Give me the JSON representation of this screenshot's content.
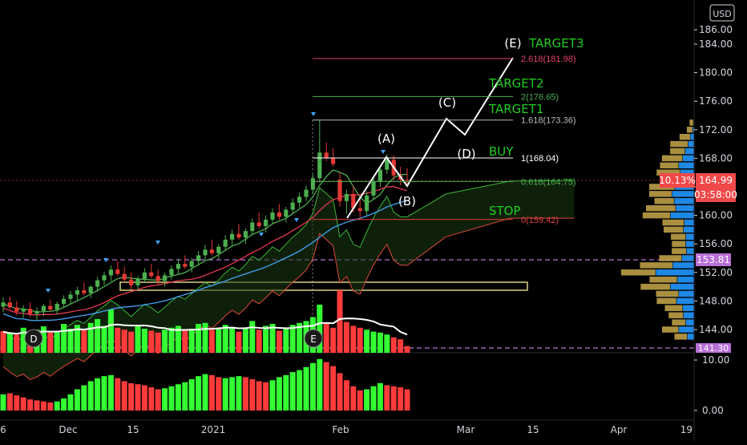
{
  "chart_data": {
    "type": "candlestick",
    "currency": "USD",
    "price_axis": {
      "range": [
        141.3,
        186.5
      ],
      "ticks": [
        "186.00",
        "184.00",
        "180.00",
        "176.00",
        "172.00",
        "168.00",
        "164.00",
        "160.00",
        "156.00",
        "152.00",
        "148.00",
        "144.00"
      ],
      "tick_values": [
        186,
        184,
        180,
        176,
        172,
        168,
        164,
        160,
        156,
        152,
        148,
        144
      ]
    },
    "oscillator_axis": {
      "ticks": [
        "10.00",
        "0.00"
      ],
      "tick_values": [
        10,
        0
      ]
    },
    "time_axis": {
      "ticks": [
        "6",
        "Dec",
        "15",
        "2021",
        "Feb",
        "Mar",
        "15",
        "Apr",
        "19"
      ]
    },
    "price_badges": {
      "change_pct": "10.13%",
      "last_price": "164.99",
      "countdown": "03:58:00",
      "purple_level_1": "153.81",
      "purple_level_2": "141.30"
    },
    "fib_levels": [
      {
        "label": "2.618(181.98)",
        "value": 181.98,
        "color": "#e0406a"
      },
      {
        "label": "2(176.65)",
        "value": 176.65,
        "color": "#4caf50"
      },
      {
        "label": "1.618(173.36)",
        "value": 173.36,
        "color": "#bbbbbb"
      },
      {
        "label": "1(168.04)",
        "value": 168.04,
        "color": "#ffffff"
      },
      {
        "label": "0.618(164.75)",
        "value": 164.75,
        "color": "#4caf50"
      },
      {
        "label": "0(159.42)",
        "value": 159.42,
        "color": "#e04040"
      }
    ],
    "wave_labels": [
      "(A)",
      "(B)",
      "(C)",
      "(D)",
      "(E)"
    ],
    "target_labels": {
      "target3": "TARGET3",
      "target2": "TARGET2",
      "target1": "TARGET1",
      "buy": "BUY",
      "stop": "STOP"
    },
    "event_markers": [
      "D",
      "E"
    ],
    "candles": [
      {
        "o": 147.2,
        "h": 148.5,
        "l": 146.4,
        "c": 147.8
      },
      {
        "o": 147.8,
        "h": 148.6,
        "l": 146.9,
        "c": 147.1
      },
      {
        "o": 147.1,
        "h": 148.0,
        "l": 146.0,
        "c": 146.5
      },
      {
        "o": 146.5,
        "h": 147.4,
        "l": 145.6,
        "c": 146.9
      },
      {
        "o": 146.9,
        "h": 147.8,
        "l": 145.8,
        "c": 146.2
      },
      {
        "o": 146.2,
        "h": 147.1,
        "l": 145.2,
        "c": 146.6
      },
      {
        "o": 146.6,
        "h": 147.6,
        "l": 145.9,
        "c": 147.3
      },
      {
        "o": 147.3,
        "h": 148.2,
        "l": 146.5,
        "c": 146.8
      },
      {
        "o": 146.8,
        "h": 147.9,
        "l": 146.1,
        "c": 147.6
      },
      {
        "o": 147.6,
        "h": 148.8,
        "l": 147.0,
        "c": 148.3
      },
      {
        "o": 148.3,
        "h": 149.4,
        "l": 147.6,
        "c": 148.9
      },
      {
        "o": 148.9,
        "h": 150.0,
        "l": 148.1,
        "c": 149.5
      },
      {
        "o": 149.5,
        "h": 150.6,
        "l": 148.8,
        "c": 149.1
      },
      {
        "o": 149.1,
        "h": 150.2,
        "l": 148.4,
        "c": 150.0
      },
      {
        "o": 150.0,
        "h": 151.4,
        "l": 149.3,
        "c": 150.9
      },
      {
        "o": 150.9,
        "h": 152.1,
        "l": 150.2,
        "c": 151.6
      },
      {
        "o": 151.6,
        "h": 153.0,
        "l": 150.8,
        "c": 152.4
      },
      {
        "o": 152.4,
        "h": 153.6,
        "l": 151.5,
        "c": 151.8
      },
      {
        "o": 151.8,
        "h": 152.8,
        "l": 150.6,
        "c": 151.0
      },
      {
        "o": 151.0,
        "h": 152.0,
        "l": 149.6,
        "c": 150.2
      },
      {
        "o": 150.2,
        "h": 151.5,
        "l": 149.4,
        "c": 151.1
      },
      {
        "o": 151.1,
        "h": 152.6,
        "l": 150.5,
        "c": 152.0
      },
      {
        "o": 152.0,
        "h": 153.2,
        "l": 151.2,
        "c": 151.5
      },
      {
        "o": 151.5,
        "h": 152.4,
        "l": 150.3,
        "c": 150.8
      },
      {
        "o": 150.8,
        "h": 152.0,
        "l": 150.0,
        "c": 151.6
      },
      {
        "o": 151.6,
        "h": 153.0,
        "l": 151.0,
        "c": 152.5
      },
      {
        "o": 152.5,
        "h": 153.9,
        "l": 151.8,
        "c": 153.2
      },
      {
        "o": 153.2,
        "h": 154.4,
        "l": 152.5,
        "c": 152.8
      },
      {
        "o": 152.8,
        "h": 154.0,
        "l": 152.0,
        "c": 153.6
      },
      {
        "o": 153.6,
        "h": 155.0,
        "l": 153.0,
        "c": 154.4
      },
      {
        "o": 154.4,
        "h": 155.9,
        "l": 153.8,
        "c": 155.2
      },
      {
        "o": 155.2,
        "h": 156.6,
        "l": 154.4,
        "c": 154.7
      },
      {
        "o": 154.7,
        "h": 156.0,
        "l": 153.9,
        "c": 155.6
      },
      {
        "o": 155.6,
        "h": 157.2,
        "l": 155.0,
        "c": 156.6
      },
      {
        "o": 156.6,
        "h": 158.0,
        "l": 155.8,
        "c": 157.4
      },
      {
        "o": 157.4,
        "h": 158.8,
        "l": 156.6,
        "c": 156.9
      },
      {
        "o": 156.9,
        "h": 158.2,
        "l": 156.0,
        "c": 157.8
      },
      {
        "o": 157.8,
        "h": 159.6,
        "l": 157.2,
        "c": 159.0
      },
      {
        "o": 159.0,
        "h": 160.4,
        "l": 158.2,
        "c": 158.5
      },
      {
        "o": 158.5,
        "h": 160.0,
        "l": 157.6,
        "c": 159.4
      },
      {
        "o": 159.4,
        "h": 161.0,
        "l": 158.8,
        "c": 160.4
      },
      {
        "o": 160.4,
        "h": 161.6,
        "l": 159.4,
        "c": 159.8
      },
      {
        "o": 159.8,
        "h": 161.2,
        "l": 159.0,
        "c": 160.8
      },
      {
        "o": 160.8,
        "h": 162.4,
        "l": 160.2,
        "c": 161.8
      },
      {
        "o": 161.8,
        "h": 163.2,
        "l": 161.0,
        "c": 162.6
      },
      {
        "o": 162.6,
        "h": 164.2,
        "l": 162.0,
        "c": 163.6
      },
      {
        "o": 163.6,
        "h": 165.8,
        "l": 163.0,
        "c": 165.2
      },
      {
        "o": 165.2,
        "h": 173.4,
        "l": 164.6,
        "c": 168.8
      },
      {
        "o": 168.8,
        "h": 170.2,
        "l": 167.6,
        "c": 168.0
      },
      {
        "o": 168.0,
        "h": 169.4,
        "l": 166.8,
        "c": 167.2
      },
      {
        "o": 165.0,
        "h": 166.0,
        "l": 161.2,
        "c": 162.0
      },
      {
        "o": 162.0,
        "h": 163.6,
        "l": 160.2,
        "c": 163.0
      },
      {
        "o": 163.0,
        "h": 164.2,
        "l": 160.4,
        "c": 161.0
      },
      {
        "o": 161.0,
        "h": 162.4,
        "l": 159.4,
        "c": 160.6
      },
      {
        "o": 160.6,
        "h": 163.4,
        "l": 160.0,
        "c": 162.8
      },
      {
        "o": 162.8,
        "h": 165.4,
        "l": 162.2,
        "c": 164.8
      },
      {
        "o": 164.8,
        "h": 167.0,
        "l": 164.0,
        "c": 166.4
      },
      {
        "o": 166.4,
        "h": 168.6,
        "l": 165.8,
        "c": 167.8
      },
      {
        "o": 167.8,
        "h": 168.4,
        "l": 165.0,
        "c": 165.6
      },
      {
        "o": 165.6,
        "h": 166.8,
        "l": 164.2,
        "c": 165.0
      },
      {
        "o": 165.0,
        "h": 166.6,
        "l": 164.4,
        "c": 164.99
      }
    ],
    "volume": [
      {
        "v": 0.45,
        "up": false
      },
      {
        "v": 0.4,
        "up": true
      },
      {
        "v": 0.38,
        "up": false
      },
      {
        "v": 0.52,
        "up": true
      },
      {
        "v": 0.44,
        "up": false
      },
      {
        "v": 0.48,
        "up": true
      },
      {
        "v": 0.55,
        "up": true
      },
      {
        "v": 0.42,
        "up": false
      },
      {
        "v": 0.46,
        "up": true
      },
      {
        "v": 0.6,
        "up": true
      },
      {
        "v": 0.5,
        "up": true
      },
      {
        "v": 0.58,
        "up": true
      },
      {
        "v": 0.48,
        "up": false
      },
      {
        "v": 0.62,
        "up": true
      },
      {
        "v": 0.7,
        "up": true
      },
      {
        "v": 0.56,
        "up": true
      },
      {
        "v": 0.9,
        "up": true
      },
      {
        "v": 0.52,
        "up": false
      },
      {
        "v": 0.48,
        "up": false
      },
      {
        "v": 0.44,
        "up": false
      },
      {
        "v": 0.58,
        "up": true
      },
      {
        "v": 0.5,
        "up": true
      },
      {
        "v": 0.46,
        "up": false
      },
      {
        "v": 0.42,
        "up": false
      },
      {
        "v": 0.48,
        "up": true
      },
      {
        "v": 0.52,
        "up": true
      },
      {
        "v": 0.56,
        "up": true
      },
      {
        "v": 0.46,
        "up": false
      },
      {
        "v": 0.5,
        "up": true
      },
      {
        "v": 0.6,
        "up": true
      },
      {
        "v": 0.62,
        "up": true
      },
      {
        "v": 0.48,
        "up": false
      },
      {
        "v": 0.52,
        "up": true
      },
      {
        "v": 0.58,
        "up": true
      },
      {
        "v": 0.54,
        "up": true
      },
      {
        "v": 0.44,
        "up": false
      },
      {
        "v": 0.5,
        "up": true
      },
      {
        "v": 0.66,
        "up": true
      },
      {
        "v": 0.48,
        "up": false
      },
      {
        "v": 0.56,
        "up": true
      },
      {
        "v": 0.6,
        "up": true
      },
      {
        "v": 0.46,
        "up": false
      },
      {
        "v": 0.52,
        "up": true
      },
      {
        "v": 0.58,
        "up": true
      },
      {
        "v": 0.62,
        "up": true
      },
      {
        "v": 0.66,
        "up": true
      },
      {
        "v": 0.74,
        "up": true
      },
      {
        "v": 1.0,
        "up": true
      },
      {
        "v": 0.6,
        "up": false
      },
      {
        "v": 0.52,
        "up": false
      },
      {
        "v": 1.3,
        "up": false
      },
      {
        "v": 0.64,
        "up": false
      },
      {
        "v": 0.56,
        "up": false
      },
      {
        "v": 0.52,
        "up": false
      },
      {
        "v": 0.48,
        "up": true
      },
      {
        "v": 0.44,
        "up": true
      },
      {
        "v": 0.42,
        "up": true
      },
      {
        "v": 0.38,
        "up": true
      },
      {
        "v": 0.32,
        "up": false
      },
      {
        "v": 0.28,
        "up": false
      },
      {
        "v": 0.14,
        "up": false
      }
    ],
    "oscillator": [
      {
        "v": 3.2,
        "up": true
      },
      {
        "v": 3.4,
        "up": false
      },
      {
        "v": 3.0,
        "up": false
      },
      {
        "v": 2.6,
        "up": false
      },
      {
        "v": 2.2,
        "up": false
      },
      {
        "v": 2.0,
        "up": false
      },
      {
        "v": 1.8,
        "up": false
      },
      {
        "v": 1.6,
        "up": false
      },
      {
        "v": 1.8,
        "up": true
      },
      {
        "v": 2.4,
        "up": true
      },
      {
        "v": 3.2,
        "up": true
      },
      {
        "v": 4.2,
        "up": true
      },
      {
        "v": 5.0,
        "up": true
      },
      {
        "v": 5.8,
        "up": true
      },
      {
        "v": 6.4,
        "up": true
      },
      {
        "v": 6.8,
        "up": true
      },
      {
        "v": 7.0,
        "up": true
      },
      {
        "v": 6.4,
        "up": false
      },
      {
        "v": 5.8,
        "up": false
      },
      {
        "v": 5.4,
        "up": false
      },
      {
        "v": 5.2,
        "up": false
      },
      {
        "v": 5.0,
        "up": false
      },
      {
        "v": 4.6,
        "up": false
      },
      {
        "v": 4.2,
        "up": false
      },
      {
        "v": 4.4,
        "up": true
      },
      {
        "v": 4.8,
        "up": true
      },
      {
        "v": 5.2,
        "up": true
      },
      {
        "v": 5.6,
        "up": true
      },
      {
        "v": 6.2,
        "up": true
      },
      {
        "v": 6.8,
        "up": true
      },
      {
        "v": 7.2,
        "up": true
      },
      {
        "v": 7.0,
        "up": false
      },
      {
        "v": 6.6,
        "up": false
      },
      {
        "v": 6.4,
        "up": true
      },
      {
        "v": 6.6,
        "up": true
      },
      {
        "v": 6.8,
        "up": true
      },
      {
        "v": 6.6,
        "up": false
      },
      {
        "v": 6.2,
        "up": false
      },
      {
        "v": 5.8,
        "up": false
      },
      {
        "v": 5.6,
        "up": false
      },
      {
        "v": 6.0,
        "up": true
      },
      {
        "v": 6.6,
        "up": true
      },
      {
        "v": 7.0,
        "up": true
      },
      {
        "v": 7.6,
        "up": true
      },
      {
        "v": 8.0,
        "up": true
      },
      {
        "v": 8.6,
        "up": true
      },
      {
        "v": 9.4,
        "up": true
      },
      {
        "v": 10.2,
        "up": true
      },
      {
        "v": 9.6,
        "up": false
      },
      {
        "v": 8.8,
        "up": false
      },
      {
        "v": 7.4,
        "up": false
      },
      {
        "v": 6.0,
        "up": false
      },
      {
        "v": 4.8,
        "up": false
      },
      {
        "v": 4.0,
        "up": false
      },
      {
        "v": 4.2,
        "up": true
      },
      {
        "v": 4.8,
        "up": true
      },
      {
        "v": 5.4,
        "up": true
      },
      {
        "v": 5.0,
        "up": false
      },
      {
        "v": 4.8,
        "up": false
      },
      {
        "v": 4.6,
        "up": false
      },
      {
        "v": 4.2,
        "up": false
      }
    ],
    "volume_profile": [
      {
        "price": 173,
        "buy": 0.08,
        "sell": 0.02
      },
      {
        "price": 172,
        "buy": 0.12,
        "sell": 0.04
      },
      {
        "price": 171,
        "buy": 0.22,
        "sell": 0.1
      },
      {
        "price": 170,
        "buy": 0.36,
        "sell": 0.16
      },
      {
        "price": 169,
        "buy": 0.3,
        "sell": 0.24
      },
      {
        "price": 168,
        "buy": 0.42,
        "sell": 0.3
      },
      {
        "price": 167,
        "buy": 0.38,
        "sell": 0.4
      },
      {
        "price": 166,
        "buy": 0.48,
        "sell": 0.36
      },
      {
        "price": 165,
        "buy": 0.44,
        "sell": 0.3
      },
      {
        "price": 164,
        "buy": 0.52,
        "sell": 0.5
      },
      {
        "price": 163,
        "buy": 0.46,
        "sell": 0.58
      },
      {
        "price": 162,
        "buy": 0.4,
        "sell": 0.52
      },
      {
        "price": 161,
        "buy": 0.6,
        "sell": 0.48
      },
      {
        "price": 160,
        "buy": 0.56,
        "sell": 0.62
      },
      {
        "price": 159,
        "buy": 0.44,
        "sell": 0.26
      },
      {
        "price": 158,
        "buy": 0.4,
        "sell": 0.28
      },
      {
        "price": 157,
        "buy": 0.3,
        "sell": 0.22
      },
      {
        "price": 156,
        "buy": 0.28,
        "sell": 0.22
      },
      {
        "price": 155,
        "buy": 0.3,
        "sell": 0.2
      },
      {
        "price": 154,
        "buy": 0.46,
        "sell": 0.32
      },
      {
        "price": 153,
        "buy": 0.66,
        "sell": 0.56
      },
      {
        "price": 152,
        "buy": 0.7,
        "sell": 1.0
      },
      {
        "price": 151,
        "buy": 0.56,
        "sell": 0.44
      },
      {
        "price": 150,
        "buy": 0.6,
        "sell": 0.62
      },
      {
        "price": 149,
        "buy": 0.46,
        "sell": 0.4
      },
      {
        "price": 148,
        "buy": 0.4,
        "sell": 0.46
      },
      {
        "price": 147,
        "buy": 0.36,
        "sell": 0.3
      },
      {
        "price": 146,
        "buy": 0.3,
        "sell": 0.28
      },
      {
        "price": 145,
        "buy": 0.28,
        "sell": 0.22
      },
      {
        "price": 144,
        "buy": 0.34,
        "sell": 0.4
      },
      {
        "price": 143,
        "buy": 0.26,
        "sell": 0.18
      }
    ],
    "colors": {
      "up": "#33ff33",
      "down": "#ff3b3b",
      "candle_up": "#4caf50",
      "candle_down": "#e53935",
      "profile_buy": "#1e88e5",
      "profile_sell": "#c8a84b",
      "badge_price": "#f04848",
      "badge_purple": "#b76fd6"
    }
  }
}
